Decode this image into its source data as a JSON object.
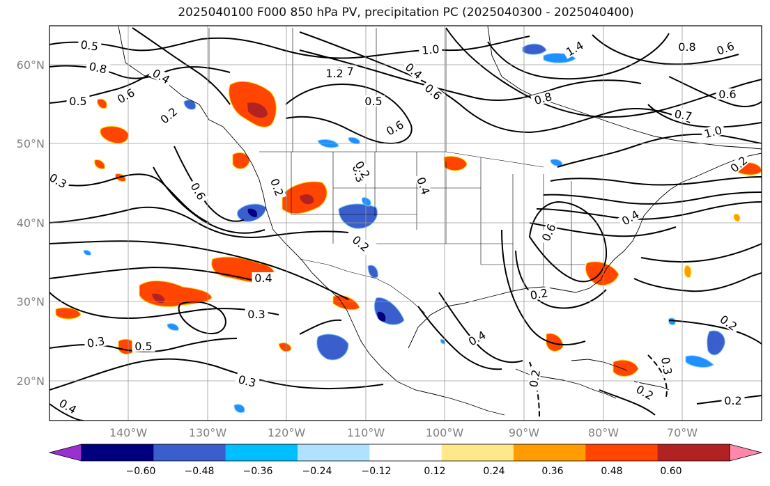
{
  "title": "2025040100 F000 850 hPa PV, precipitation PC (2025040300 - 2025040400)",
  "map": {
    "lat_labels": [
      "60°N",
      "50°N",
      "40°N",
      "30°N",
      "20°N"
    ],
    "lon_labels": [
      "140°W",
      "130°W",
      "120°W",
      "110°W",
      "100°W",
      "90°W",
      "80°W",
      "70°W"
    ],
    "contour_labels": [
      "0.5",
      "0.8",
      "0.6",
      "0.5",
      "0.4",
      "0.2",
      "1.0",
      "0.7",
      "0.5",
      "0.6",
      "0.6",
      "0.8",
      "1.4",
      "0.8",
      "0.6",
      "0.7",
      "1.0",
      "0.6",
      "0.3",
      "0.6",
      "0.2",
      "0.3",
      "0.4",
      "0.2",
      "0.4",
      "0.6",
      "0.4",
      "0.3",
      "0.4",
      "0.3",
      "0.5",
      "0.3",
      "0.4",
      "0.2",
      "0.2",
      "0.2",
      "0.4",
      "0.2",
      "0.3",
      "0.2",
      "0.2",
      "0.2",
      "1.2"
    ]
  },
  "colorbar": {
    "ticks": [
      "−0.60",
      "−0.48",
      "−0.36",
      "−0.24",
      "−0.12",
      "0.12",
      "0.24",
      "0.36",
      "0.48",
      "0.60"
    ],
    "colors": [
      "#9b30d0",
      "#00007f",
      "#3a5fcd",
      "#00bfff",
      "#b0e2ff",
      "#ffffff",
      "#ffe88a",
      "#ff9c00",
      "#ff4500",
      "#b22222",
      "#ff88aa"
    ]
  },
  "precip_colors": {
    "neg_strong": "#00007f",
    "neg_med": "#3a5fcd",
    "neg_light": "#1e90ff",
    "neg_faint": "#87cefa",
    "pos_faint": "#ffe066",
    "pos_light": "#ff9c00",
    "pos_med": "#ff4500",
    "pos_strong": "#b22222"
  }
}
